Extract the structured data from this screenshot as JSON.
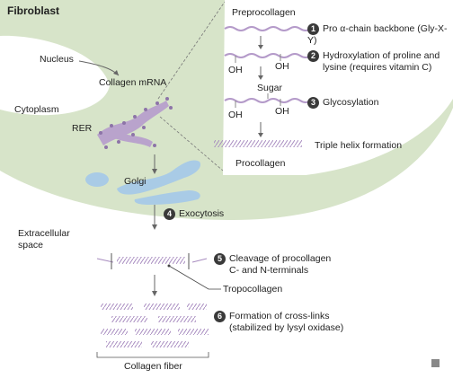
{
  "title": "Fibroblast",
  "regions": {
    "nucleus": "Nucleus",
    "cytoplasm": "Cytoplasm",
    "extracellular": "Extracellular space"
  },
  "organelles": {
    "collagen_mrna": "Collagen mRNA",
    "rer": "RER",
    "golgi": "Golgi"
  },
  "labels": {
    "preprocollagen": "Preprocollagen",
    "oh": "OH",
    "sugar": "Sugar",
    "procollagen": "Procollagen",
    "tropocollagen": "Tropocollagen",
    "collagen_fiber": "Collagen fiber"
  },
  "steps": [
    {
      "num": "1",
      "text": "Pro α-chain backbone (Gly-X-Y)"
    },
    {
      "num": "2",
      "line1": "Hydroxylation of proline and",
      "line2": "lysine (requires vitamin C)"
    },
    {
      "num": "3",
      "text": "Glycosylation"
    },
    {
      "text": "Triple helix formation"
    },
    {
      "num": "4",
      "text": "Exocytosis"
    },
    {
      "num": "5",
      "line1": "Cleavage of procollagen",
      "line2": "C- and N-terminals"
    },
    {
      "num": "6",
      "line1": "Formation of cross-links",
      "line2": "(stabilized by lysyl oxidase)"
    }
  ],
  "colors": {
    "cell": "#d7e4c9",
    "nucleus": "#ffffff",
    "rer": "#b9a3cc",
    "golgi": "#a9cbe6",
    "helix": "#b49ac9",
    "badge": "#3a3a3a"
  }
}
